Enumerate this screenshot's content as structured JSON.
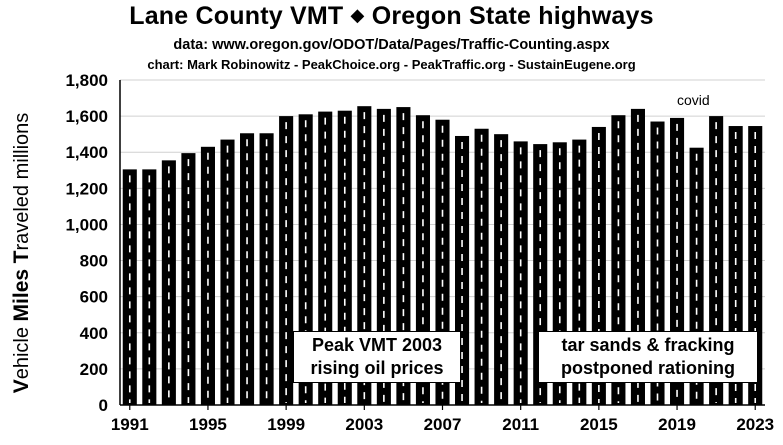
{
  "title_left": "Lane County VMT",
  "title_sep": "◆",
  "title_right": "Oregon State highways",
  "subtitle_data": "data:  www.oregon.gov/ODOT/Data/Pages/Traffic-Counting.aspx",
  "subtitle_chart": "chart: Mark Robinowitz - PeakChoice.org - PeakTraffic.org - SustainEugene.org",
  "ylabel_parts": {
    "v_cap": "V",
    "v_rest": "ehicle ",
    "m_cap": "Miles",
    "m_rest": " ",
    "t_cap": "T",
    "t_rest": "raveled millions"
  },
  "annotations": {
    "peak_line1": "Peak VMT 2003",
    "peak_line2": "rising oil prices",
    "tar_line1": "tar sands & fracking",
    "tar_line2": "postponed rationing",
    "covid": "covid"
  },
  "colors": {
    "bar": "#000000",
    "stripe": "#ffffff",
    "grid": "#d0d0d0"
  },
  "chart_data": {
    "type": "bar",
    "ylabel": "Vehicle Miles Traveled millions",
    "ylim": [
      0,
      1800
    ],
    "yticks": [
      "0",
      "200",
      "400",
      "600",
      "800",
      "1,000",
      "1,200",
      "1,400",
      "1,600",
      "1,800"
    ],
    "xtick_labels": [
      "1991",
      "1995",
      "1999",
      "2003",
      "2007",
      "2011",
      "2015",
      "2019",
      "2023"
    ],
    "grid": true,
    "categories": [
      1991,
      1992,
      1993,
      1994,
      1995,
      1996,
      1997,
      1998,
      1999,
      2000,
      2001,
      2002,
      2003,
      2004,
      2005,
      2006,
      2007,
      2008,
      2009,
      2010,
      2011,
      2012,
      2013,
      2014,
      2015,
      2016,
      2017,
      2018,
      2019,
      2020,
      2021,
      2022,
      2023
    ],
    "values": [
      1305,
      1305,
      1355,
      1395,
      1430,
      1470,
      1505,
      1505,
      1600,
      1610,
      1625,
      1630,
      1655,
      1640,
      1650,
      1605,
      1580,
      1490,
      1530,
      1500,
      1460,
      1445,
      1455,
      1470,
      1540,
      1605,
      1640,
      1570,
      1590,
      1425,
      1600,
      1545,
      1545
    ]
  }
}
